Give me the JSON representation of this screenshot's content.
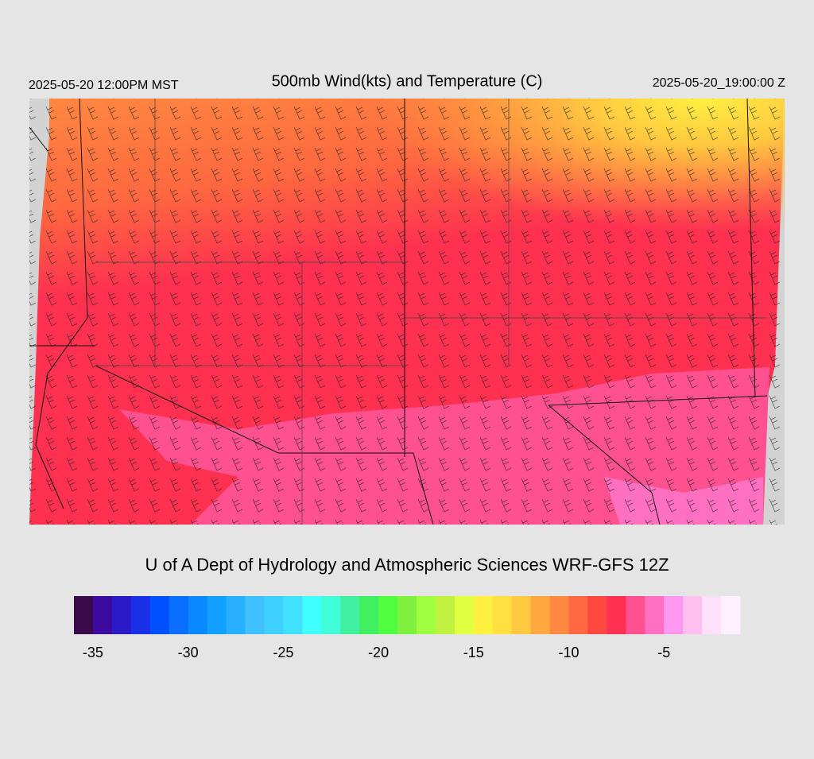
{
  "header": {
    "title": "500mb Wind(kts) and Temperature (C)",
    "valid_local": "2025-05-20 12:00PM MST",
    "valid_utc": "2025-05-20_19:00:00 Z"
  },
  "footer": {
    "credit": "U of A Dept of Hydrology and Atmospheric Sciences WRF-GFS 12Z"
  },
  "colorbar": {
    "lim": [
      -36,
      -1
    ],
    "ticks": [
      -35,
      -30,
      -25,
      -20,
      -15,
      -10,
      -5
    ],
    "colors": [
      "#3a0a4a",
      "#3d0aa0",
      "#2a1ac8",
      "#1a30e8",
      "#0050ff",
      "#0a6eff",
      "#0a88ff",
      "#10a0ff",
      "#28b0ff",
      "#40c0ff",
      "#40d0ff",
      "#40e0ff",
      "#40ffff",
      "#40ffd8",
      "#40f0a0",
      "#40f060",
      "#50ff40",
      "#80f040",
      "#a0ff40",
      "#c0f040",
      "#e0ff40",
      "#fff040",
      "#ffe040",
      "#ffc840",
      "#ffa840",
      "#ff8840",
      "#ff6840",
      "#ff4840",
      "#ff3050",
      "#ff5090",
      "#ff70c0",
      "#ff98f0",
      "#ffc0f0",
      "#ffe0fa",
      "#fff0ff"
    ]
  }
}
